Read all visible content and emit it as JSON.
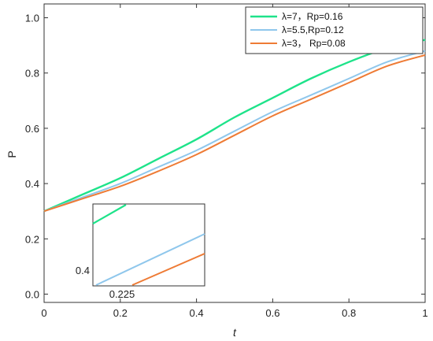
{
  "chart_data": {
    "type": "line",
    "title": "",
    "xlabel": "t",
    "ylabel": "P",
    "xlim": [
      0,
      1
    ],
    "ylim": [
      -0.03,
      1.05
    ],
    "xticks": [
      0,
      0.2,
      0.4,
      0.6,
      0.8,
      1
    ],
    "xtick_labels": [
      "0",
      "0.2",
      "0.4",
      "0.6",
      "0.8",
      "1"
    ],
    "yticks": [
      0,
      0.2,
      0.4,
      0.6,
      0.8,
      1.0
    ],
    "ytick_labels": [
      "0.0",
      "0.2",
      "0.4",
      "0.6",
      "0.8",
      "1.0"
    ],
    "grid": false,
    "legend_position": "top-right",
    "x": [
      0,
      0.1,
      0.2,
      0.3,
      0.4,
      0.5,
      0.6,
      0.7,
      0.8,
      0.9,
      1.0
    ],
    "series": [
      {
        "name": "λ=7，Rp=0.16",
        "color": "#1ee38a",
        "values": [
          0.3,
          0.36,
          0.42,
          0.49,
          0.56,
          0.64,
          0.71,
          0.78,
          0.84,
          0.89,
          0.92
        ]
      },
      {
        "name": "λ=5.5,Rp=0.12",
        "color": "#8fc7ec",
        "values": [
          0.3,
          0.35,
          0.4,
          0.46,
          0.52,
          0.59,
          0.66,
          0.72,
          0.78,
          0.84,
          0.88
        ]
      },
      {
        "name": "λ=3，  Rp=0.08",
        "color": "#ee7b35",
        "values": [
          0.3,
          0.345,
          0.39,
          0.445,
          0.505,
          0.575,
          0.645,
          0.705,
          0.765,
          0.825,
          0.865
        ]
      }
    ],
    "inset": {
      "xlabel": "0.225",
      "ylabel": "0.4"
    }
  }
}
